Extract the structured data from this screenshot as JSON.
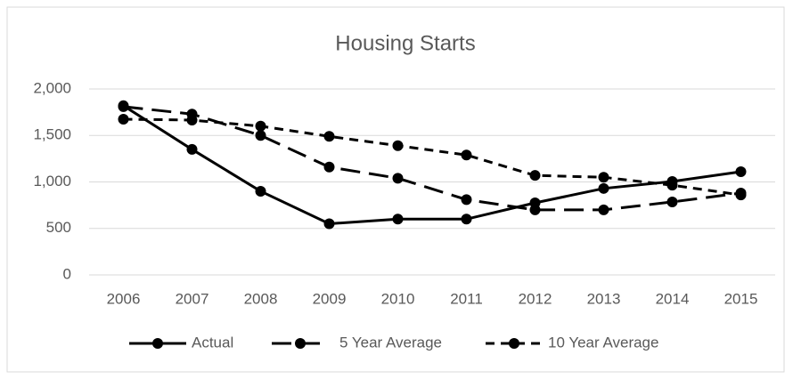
{
  "chart_data": {
    "type": "line",
    "title": "Housing Starts",
    "categories": [
      "2006",
      "2007",
      "2008",
      "2009",
      "2010",
      "2011",
      "2012",
      "2013",
      "2014",
      "2015"
    ],
    "series": [
      {
        "name": "Actual",
        "color": "#000000",
        "line_style": "solid",
        "values": [
          1820,
          1350,
          900,
          550,
          600,
          600,
          775,
          930,
          1005,
          1110
        ]
      },
      {
        "name": "5 Year Average",
        "color": "#000000",
        "line_style": "long-dash",
        "values": [
          1810,
          1730,
          1500,
          1160,
          1040,
          810,
          700,
          700,
          785,
          880
        ]
      },
      {
        "name": "10 Year Average",
        "color": "#000000",
        "line_style": "dash",
        "values": [
          1675,
          1665,
          1600,
          1490,
          1390,
          1290,
          1070,
          1050,
          965,
          860
        ]
      }
    ],
    "ylim": [
      0,
      2000
    ],
    "yticks": [
      0,
      500,
      {
        "value": 1000,
        "label": "1,000"
      },
      {
        "value": 1500,
        "label": "1,500"
      },
      {
        "value": 2000,
        "label": "2,000"
      }
    ],
    "grid": true,
    "legend": "bottom"
  }
}
